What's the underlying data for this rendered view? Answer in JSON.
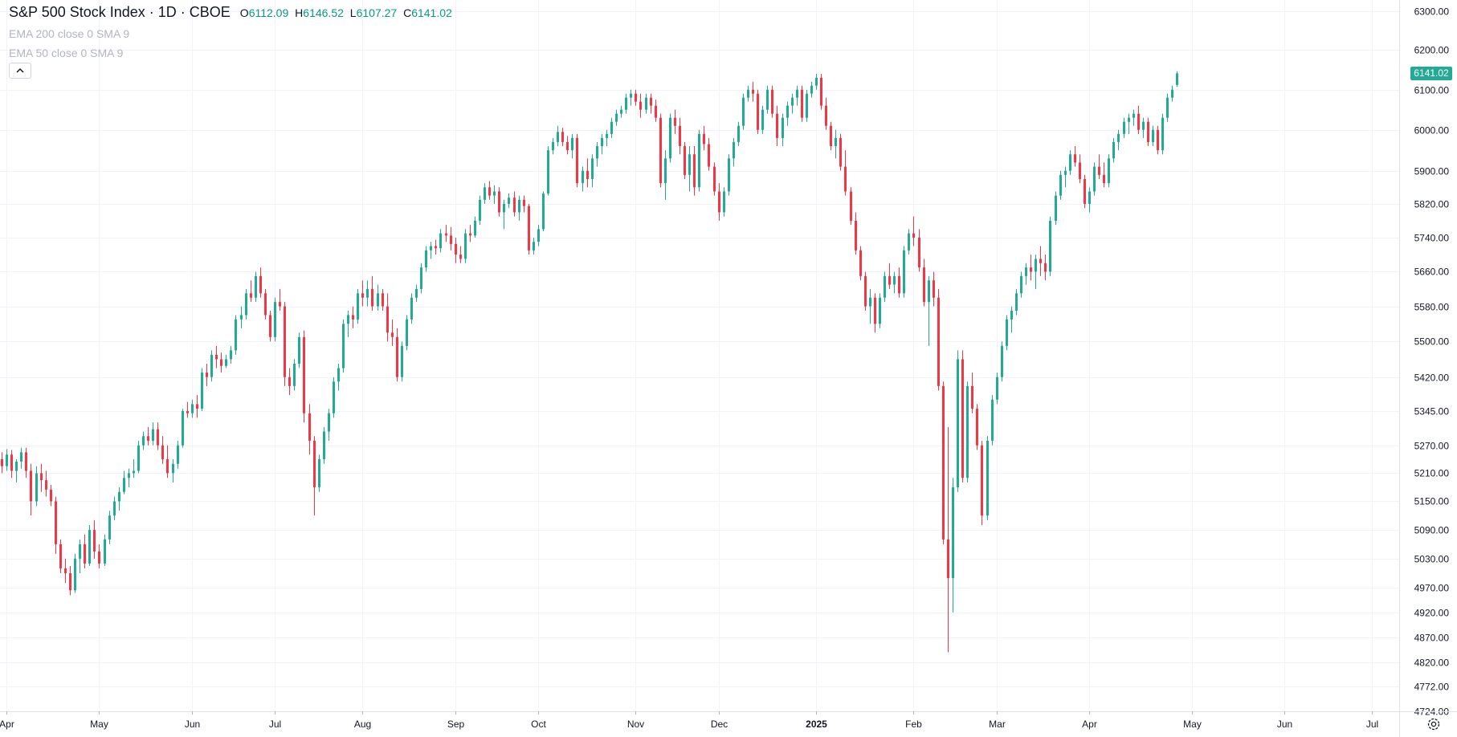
{
  "legend": {
    "title": "S&P 500 Stock Index · 1D · CBOE",
    "open_label": "O",
    "open": "6112.09",
    "high_label": "H",
    "high": "6146.52",
    "low_label": "L",
    "low": "6107.27",
    "close_label": "C",
    "close": "6141.02",
    "indicator_1": "EMA 200 close 0 SMA 9",
    "indicator_2": "EMA 50 close 0 SMA 9"
  },
  "last_price_label": "6141.02",
  "colors": {
    "up": "#22ab94",
    "down": "#f23645",
    "grid": "#f0f3fa",
    "axis_text": "#131722",
    "indicator_text": "#b2b5be"
  },
  "icons": {
    "collapse": "chevron-up-icon",
    "settings": "gear-icon"
  },
  "chart_data": {
    "type": "candlestick",
    "title": "S&P 500 Stock Index · 1D · CBOE",
    "y_scale": "log",
    "ylim": [
      4724,
      6300
    ],
    "y_ticks": [
      6300,
      6200,
      6100,
      6000,
      5900,
      5820,
      5740,
      5660,
      5580,
      5500,
      5420,
      5345,
      5270,
      5210,
      5150,
      5090,
      5030,
      4970,
      4920,
      4870,
      4820,
      4772,
      4724
    ],
    "x_labels": [
      {
        "label": "Apr",
        "index": 1
      },
      {
        "label": "May",
        "index": 20
      },
      {
        "label": "Jun",
        "index": 39
      },
      {
        "label": "Jul",
        "index": 56
      },
      {
        "label": "Aug",
        "index": 74
      },
      {
        "label": "Sep",
        "index": 93
      },
      {
        "label": "Oct",
        "index": 110
      },
      {
        "label": "Nov",
        "index": 130
      },
      {
        "label": "Dec",
        "index": 147
      },
      {
        "label": "2025",
        "index": 167
      },
      {
        "label": "Feb",
        "index": 187
      },
      {
        "label": "Mar",
        "index": 204
      },
      {
        "label": "Apr",
        "index": 223
      },
      {
        "label": "May",
        "index": 244
      },
      {
        "label": "Jun",
        "index": 263
      },
      {
        "label": "Jul",
        "index": 281
      }
    ],
    "legend_visible": false,
    "grid": true,
    "candles": [
      [
        5240,
        5255,
        5210,
        5225
      ],
      [
        5225,
        5262,
        5215,
        5250
      ],
      [
        5250,
        5260,
        5200,
        5215
      ],
      [
        5215,
        5240,
        5190,
        5235
      ],
      [
        5235,
        5265,
        5220,
        5255
      ],
      [
        5255,
        5265,
        5200,
        5215
      ],
      [
        5215,
        5230,
        5120,
        5150
      ],
      [
        5150,
        5225,
        5140,
        5210
      ],
      [
        5210,
        5230,
        5170,
        5195
      ],
      [
        5195,
        5215,
        5160,
        5175
      ],
      [
        5175,
        5185,
        5140,
        5150
      ],
      [
        5150,
        5160,
        5040,
        5060
      ],
      [
        5060,
        5070,
        5000,
        5010
      ],
      [
        5010,
        5030,
        4980,
        5000
      ],
      [
        5000,
        5015,
        4955,
        4965
      ],
      [
        4965,
        5040,
        4960,
        5030
      ],
      [
        5030,
        5070,
        5000,
        5060
      ],
      [
        5060,
        5080,
        5010,
        5020
      ],
      [
        5020,
        5100,
        5015,
        5090
      ],
      [
        5090,
        5110,
        5030,
        5045
      ],
      [
        5045,
        5060,
        5010,
        5020
      ],
      [
        5020,
        5080,
        5015,
        5070
      ],
      [
        5070,
        5130,
        5060,
        5120
      ],
      [
        5120,
        5160,
        5110,
        5150
      ],
      [
        5150,
        5180,
        5130,
        5170
      ],
      [
        5170,
        5215,
        5165,
        5200
      ],
      [
        5200,
        5220,
        5180,
        5210
      ],
      [
        5210,
        5240,
        5200,
        5215
      ],
      [
        5215,
        5280,
        5210,
        5270
      ],
      [
        5270,
        5300,
        5260,
        5290
      ],
      [
        5290,
        5310,
        5270,
        5280
      ],
      [
        5280,
        5320,
        5270,
        5305
      ],
      [
        5305,
        5320,
        5260,
        5270
      ],
      [
        5270,
        5290,
        5230,
        5240
      ],
      [
        5240,
        5270,
        5200,
        5210
      ],
      [
        5210,
        5240,
        5190,
        5230
      ],
      [
        5230,
        5280,
        5220,
        5270
      ],
      [
        5270,
        5350,
        5265,
        5345
      ],
      [
        5345,
        5365,
        5330,
        5340
      ],
      [
        5340,
        5370,
        5330,
        5360
      ],
      [
        5360,
        5380,
        5330,
        5350
      ],
      [
        5350,
        5440,
        5345,
        5430
      ],
      [
        5430,
        5450,
        5400,
        5420
      ],
      [
        5420,
        5480,
        5410,
        5470
      ],
      [
        5470,
        5490,
        5440,
        5460
      ],
      [
        5460,
        5475,
        5430,
        5445
      ],
      [
        5445,
        5470,
        5440,
        5460
      ],
      [
        5460,
        5490,
        5450,
        5480
      ],
      [
        5480,
        5560,
        5470,
        5550
      ],
      [
        5550,
        5580,
        5530,
        5560
      ],
      [
        5560,
        5620,
        5550,
        5610
      ],
      [
        5610,
        5640,
        5590,
        5600
      ],
      [
        5600,
        5660,
        5590,
        5650
      ],
      [
        5650,
        5670,
        5600,
        5610
      ],
      [
        5610,
        5620,
        5550,
        5560
      ],
      [
        5560,
        5570,
        5500,
        5510
      ],
      [
        5510,
        5600,
        5500,
        5590
      ],
      [
        5590,
        5620,
        5570,
        5580
      ],
      [
        5580,
        5590,
        5400,
        5420
      ],
      [
        5420,
        5440,
        5380,
        5400
      ],
      [
        5400,
        5460,
        5390,
        5450
      ],
      [
        5450,
        5520,
        5440,
        5510
      ],
      [
        5510,
        5525,
        5320,
        5340
      ],
      [
        5340,
        5360,
        5250,
        5280
      ],
      [
        5280,
        5290,
        5120,
        5180
      ],
      [
        5180,
        5250,
        5170,
        5240
      ],
      [
        5240,
        5310,
        5230,
        5300
      ],
      [
        5300,
        5350,
        5280,
        5340
      ],
      [
        5340,
        5420,
        5330,
        5410
      ],
      [
        5410,
        5450,
        5390,
        5440
      ],
      [
        5440,
        5550,
        5430,
        5540
      ],
      [
        5540,
        5570,
        5510,
        5560
      ],
      [
        5560,
        5580,
        5530,
        5550
      ],
      [
        5550,
        5620,
        5540,
        5610
      ],
      [
        5610,
        5640,
        5580,
        5600
      ],
      [
        5600,
        5640,
        5580,
        5620
      ],
      [
        5620,
        5650,
        5570,
        5580
      ],
      [
        5580,
        5630,
        5570,
        5610
      ],
      [
        5610,
        5620,
        5570,
        5580
      ],
      [
        5580,
        5610,
        5500,
        5520
      ],
      [
        5520,
        5550,
        5490,
        5510
      ],
      [
        5510,
        5530,
        5410,
        5420
      ],
      [
        5420,
        5500,
        5410,
        5490
      ],
      [
        5490,
        5560,
        5480,
        5550
      ],
      [
        5550,
        5610,
        5540,
        5600
      ],
      [
        5600,
        5630,
        5590,
        5620
      ],
      [
        5620,
        5680,
        5610,
        5670
      ],
      [
        5670,
        5720,
        5660,
        5710
      ],
      [
        5710,
        5730,
        5690,
        5720
      ],
      [
        5720,
        5735,
        5700,
        5715
      ],
      [
        5715,
        5760,
        5705,
        5750
      ],
      [
        5750,
        5770,
        5730,
        5745
      ],
      [
        5745,
        5765,
        5710,
        5725
      ],
      [
        5725,
        5740,
        5680,
        5700
      ],
      [
        5700,
        5720,
        5680,
        5690
      ],
      [
        5690,
        5760,
        5680,
        5750
      ],
      [
        5750,
        5770,
        5730,
        5745
      ],
      [
        5745,
        5790,
        5740,
        5780
      ],
      [
        5780,
        5840,
        5770,
        5830
      ],
      [
        5830,
        5870,
        5820,
        5860
      ],
      [
        5860,
        5875,
        5830,
        5840
      ],
      [
        5840,
        5865,
        5820,
        5850
      ],
      [
        5850,
        5860,
        5790,
        5800
      ],
      [
        5800,
        5830,
        5760,
        5820
      ],
      [
        5820,
        5845,
        5810,
        5835
      ],
      [
        5835,
        5850,
        5790,
        5800
      ],
      [
        5800,
        5840,
        5780,
        5830
      ],
      [
        5830,
        5840,
        5800,
        5815
      ],
      [
        5815,
        5820,
        5700,
        5710
      ],
      [
        5710,
        5740,
        5700,
        5730
      ],
      [
        5730,
        5770,
        5720,
        5760
      ],
      [
        5760,
        5850,
        5755,
        5845
      ],
      [
        5845,
        5960,
        5840,
        5950
      ],
      [
        5950,
        5980,
        5940,
        5970
      ],
      [
        5970,
        6010,
        5960,
        5995
      ],
      [
        5995,
        6005,
        5960,
        5970
      ],
      [
        5970,
        5985,
        5940,
        5950
      ],
      [
        5950,
        5990,
        5930,
        5980
      ],
      [
        5980,
        5990,
        5860,
        5870
      ],
      [
        5870,
        5910,
        5850,
        5900
      ],
      [
        5900,
        5930,
        5860,
        5880
      ],
      [
        5880,
        5940,
        5860,
        5930
      ],
      [
        5930,
        5970,
        5910,
        5960
      ],
      [
        5960,
        5990,
        5940,
        5980
      ],
      [
        5980,
        6000,
        5960,
        5990
      ],
      [
        5990,
        6030,
        5980,
        6020
      ],
      [
        6020,
        6050,
        6010,
        6040
      ],
      [
        6040,
        6060,
        6030,
        6050
      ],
      [
        6050,
        6090,
        6040,
        6080
      ],
      [
        6080,
        6100,
        6060,
        6090
      ],
      [
        6090,
        6100,
        6060,
        6070
      ],
      [
        6070,
        6090,
        6030,
        6050
      ],
      [
        6050,
        6090,
        6040,
        6080
      ],
      [
        6080,
        6090,
        6040,
        6060
      ],
      [
        6060,
        6075,
        6020,
        6030
      ],
      [
        6030,
        6040,
        5860,
        5870
      ],
      [
        5870,
        5950,
        5830,
        5930
      ],
      [
        5930,
        6040,
        5920,
        6030
      ],
      [
        6030,
        6050,
        5990,
        6010
      ],
      [
        6010,
        6030,
        5940,
        5960
      ],
      [
        5960,
        5970,
        5880,
        5890
      ],
      [
        5890,
        5960,
        5850,
        5940
      ],
      [
        5940,
        5960,
        5840,
        5860
      ],
      [
        5860,
        6000,
        5850,
        5990
      ],
      [
        5990,
        6010,
        5950,
        5965
      ],
      [
        5965,
        5980,
        5900,
        5910
      ],
      [
        5910,
        5920,
        5840,
        5850
      ],
      [
        5850,
        5870,
        5780,
        5800
      ],
      [
        5800,
        5860,
        5790,
        5850
      ],
      [
        5850,
        5940,
        5840,
        5930
      ],
      [
        5930,
        5980,
        5910,
        5970
      ],
      [
        5970,
        6020,
        5960,
        6010
      ],
      [
        6010,
        6090,
        6000,
        6080
      ],
      [
        6080,
        6110,
        6070,
        6100
      ],
      [
        6100,
        6120,
        6070,
        6090
      ],
      [
        6090,
        6100,
        5990,
        6000
      ],
      [
        6000,
        6060,
        5990,
        6050
      ],
      [
        6050,
        6110,
        6040,
        6100
      ],
      [
        6100,
        6110,
        6030,
        6040
      ],
      [
        6040,
        6060,
        5960,
        5980
      ],
      [
        5980,
        6040,
        5960,
        6030
      ],
      [
        6030,
        6070,
        6010,
        6060
      ],
      [
        6060,
        6090,
        6040,
        6080
      ],
      [
        6080,
        6110,
        6060,
        6100
      ],
      [
        6100,
        6110,
        6020,
        6030
      ],
      [
        6030,
        6100,
        6020,
        6090
      ],
      [
        6090,
        6120,
        6080,
        6110
      ],
      [
        6110,
        6140,
        6100,
        6130
      ],
      [
        6130,
        6140,
        6050,
        6060
      ],
      [
        6060,
        6080,
        6000,
        6010
      ],
      [
        6010,
        6020,
        5950,
        5960
      ],
      [
        5960,
        6000,
        5930,
        5980
      ],
      [
        5980,
        5990,
        5900,
        5910
      ],
      [
        5910,
        5950,
        5840,
        5850
      ],
      [
        5850,
        5860,
        5770,
        5780
      ],
      [
        5780,
        5800,
        5700,
        5710
      ],
      [
        5710,
        5720,
        5640,
        5650
      ],
      [
        5650,
        5660,
        5570,
        5580
      ],
      [
        5580,
        5620,
        5540,
        5600
      ],
      [
        5600,
        5610,
        5520,
        5540
      ],
      [
        5540,
        5610,
        5530,
        5600
      ],
      [
        5600,
        5660,
        5590,
        5650
      ],
      [
        5650,
        5680,
        5620,
        5630
      ],
      [
        5630,
        5660,
        5610,
        5650
      ],
      [
        5650,
        5670,
        5600,
        5610
      ],
      [
        5610,
        5720,
        5600,
        5710
      ],
      [
        5710,
        5760,
        5700,
        5750
      ],
      [
        5750,
        5790,
        5720,
        5740
      ],
      [
        5740,
        5760,
        5660,
        5670
      ],
      [
        5670,
        5690,
        5580,
        5590
      ],
      [
        5590,
        5650,
        5490,
        5640
      ],
      [
        5640,
        5660,
        5580,
        5600
      ],
      [
        5600,
        5620,
        5390,
        5400
      ],
      [
        5400,
        5410,
        5060,
        5070
      ],
      [
        5070,
        5310,
        4840,
        4990
      ],
      [
        4990,
        5200,
        4920,
        5180
      ],
      [
        5180,
        5480,
        5170,
        5460
      ],
      [
        5460,
        5480,
        5190,
        5200
      ],
      [
        5200,
        5410,
        5190,
        5400
      ],
      [
        5400,
        5430,
        5340,
        5350
      ],
      [
        5350,
        5360,
        5260,
        5270
      ],
      [
        5270,
        5280,
        5100,
        5120
      ],
      [
        5120,
        5290,
        5110,
        5280
      ],
      [
        5280,
        5380,
        5270,
        5370
      ],
      [
        5370,
        5430,
        5360,
        5420
      ],
      [
        5420,
        5500,
        5410,
        5490
      ],
      [
        5490,
        5560,
        5480,
        5550
      ],
      [
        5550,
        5580,
        5520,
        5570
      ],
      [
        5570,
        5620,
        5560,
        5610
      ],
      [
        5610,
        5660,
        5600,
        5650
      ],
      [
        5650,
        5680,
        5630,
        5670
      ],
      [
        5670,
        5700,
        5640,
        5660
      ],
      [
        5660,
        5700,
        5620,
        5690
      ],
      [
        5690,
        5720,
        5650,
        5680
      ],
      [
        5680,
        5700,
        5640,
        5660
      ],
      [
        5660,
        5790,
        5650,
        5780
      ],
      [
        5780,
        5850,
        5770,
        5840
      ],
      [
        5840,
        5900,
        5830,
        5890
      ],
      [
        5890,
        5910,
        5860,
        5900
      ],
      [
        5900,
        5950,
        5890,
        5940
      ],
      [
        5940,
        5960,
        5910,
        5920
      ],
      [
        5920,
        5940,
        5870,
        5880
      ],
      [
        5880,
        5890,
        5810,
        5820
      ],
      [
        5820,
        5860,
        5800,
        5850
      ],
      [
        5850,
        5920,
        5840,
        5910
      ],
      [
        5910,
        5940,
        5880,
        5890
      ],
      [
        5890,
        5920,
        5860,
        5870
      ],
      [
        5870,
        5940,
        5860,
        5930
      ],
      [
        5930,
        5980,
        5920,
        5970
      ],
      [
        5970,
        6000,
        5950,
        5990
      ],
      [
        5990,
        6030,
        5980,
        6020
      ],
      [
        6020,
        6040,
        5990,
        6030
      ],
      [
        6030,
        6050,
        6010,
        6040
      ],
      [
        6040,
        6060,
        5990,
        6000
      ],
      [
        6000,
        6030,
        5980,
        6020
      ],
      [
        6020,
        6030,
        5960,
        5970
      ],
      [
        5970,
        6010,
        5960,
        6000
      ],
      [
        6000,
        6010,
        5940,
        5950
      ],
      [
        5950,
        6040,
        5940,
        6030
      ],
      [
        6030,
        6090,
        6020,
        6080
      ],
      [
        6080,
        6110,
        6070,
        6100
      ],
      [
        6112.09,
        6146.52,
        6107.27,
        6141.02
      ]
    ]
  }
}
